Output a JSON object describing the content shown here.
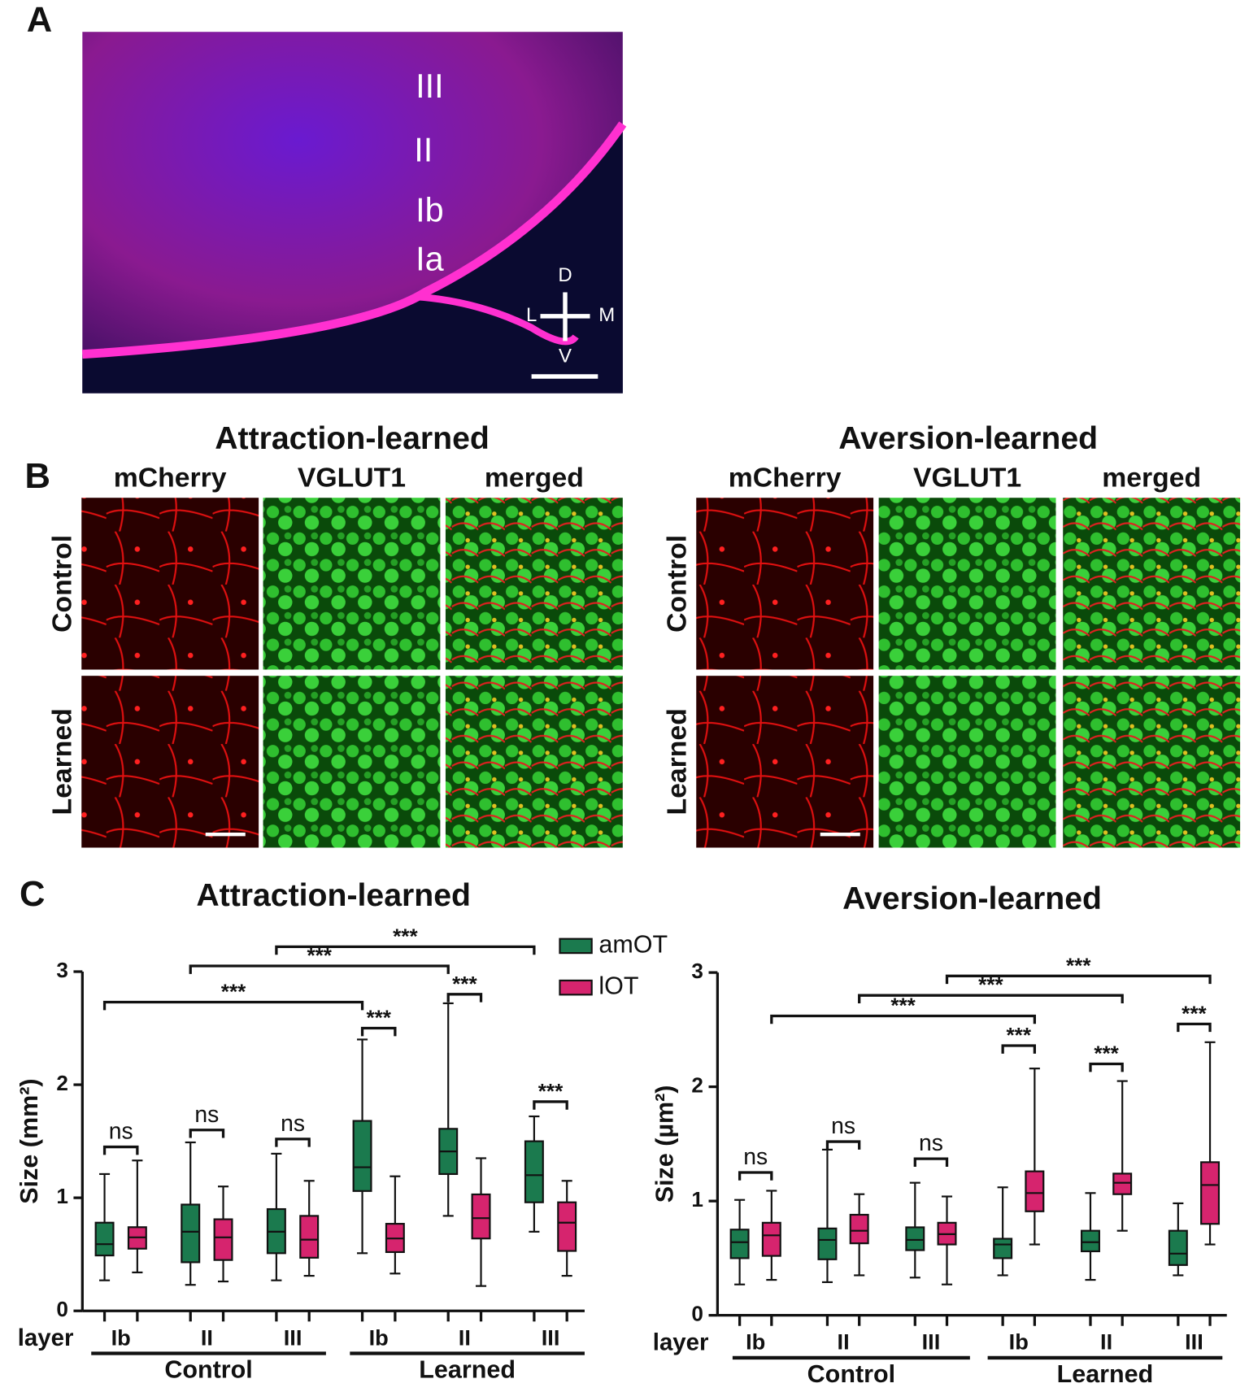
{
  "panel_a": {
    "label": "A",
    "layers": [
      "III",
      "II",
      "Ib",
      "Ia"
    ],
    "axes": [
      "D",
      "L",
      "M",
      "V"
    ]
  },
  "panel_b": {
    "label": "B",
    "groups": [
      {
        "title": "Attraction-learned",
        "columns": [
          "mCherry",
          "VGLUT1",
          "merged"
        ],
        "rows": [
          "Control",
          "Learned"
        ]
      },
      {
        "title": "Aversion-learned",
        "columns": [
          "mCherry",
          "VGLUT1",
          "merged"
        ],
        "rows": [
          "Control",
          "Learned"
        ]
      }
    ]
  },
  "panel_c": {
    "label": "C"
  },
  "chart_data": [
    {
      "type": "box",
      "title": "Attraction-learned",
      "ylabel": "Size (mm²)",
      "xlabel": "layer",
      "categories": [
        "Ib",
        "II",
        "III",
        "Ib",
        "II",
        "III"
      ],
      "groups": [
        "Control",
        "Learned"
      ],
      "ylim": [
        0,
        3
      ],
      "yticks": [
        0,
        1,
        2,
        3
      ],
      "legend": "top-right",
      "series": [
        {
          "name": "amOT",
          "color": "#1b7a4e",
          "min": [
            0.27,
            0.23,
            0.27,
            0.51,
            0.84,
            0.7
          ],
          "q1": [
            0.49,
            0.43,
            0.51,
            1.06,
            1.21,
            0.96
          ],
          "median": [
            0.59,
            0.7,
            0.7,
            1.27,
            1.41,
            1.2
          ],
          "q3": [
            0.78,
            0.94,
            0.9,
            1.68,
            1.61,
            1.5
          ],
          "max": [
            1.21,
            1.49,
            1.39,
            2.4,
            2.72,
            1.72
          ]
        },
        {
          "name": "lOT",
          "color": "#d6246e",
          "min": [
            0.34,
            0.26,
            0.31,
            0.33,
            0.22,
            0.31
          ],
          "q1": [
            0.55,
            0.45,
            0.47,
            0.52,
            0.64,
            0.53
          ],
          "median": [
            0.65,
            0.65,
            0.63,
            0.64,
            0.82,
            0.78
          ],
          "q3": [
            0.74,
            0.81,
            0.84,
            0.77,
            1.03,
            0.96
          ],
          "max": [
            1.33,
            1.1,
            1.15,
            1.19,
            1.35,
            1.15
          ]
        }
      ],
      "annotations": [
        "ns",
        "ns",
        "ns",
        "***",
        "***",
        "***",
        "***",
        "***",
        "***"
      ]
    },
    {
      "type": "box",
      "title": "Aversion-learned",
      "ylabel": "Size (µm²)",
      "xlabel": "layer",
      "categories": [
        "Ib",
        "II",
        "III",
        "Ib",
        "II",
        "III"
      ],
      "groups": [
        "Control",
        "Learned"
      ],
      "ylim": [
        0,
        3
      ],
      "yticks": [
        0,
        1,
        2,
        3
      ],
      "series": [
        {
          "name": "amOT",
          "color": "#1b7a4e",
          "min": [
            0.27,
            0.29,
            0.33,
            0.35,
            0.31,
            0.35
          ],
          "q1": [
            0.5,
            0.49,
            0.57,
            0.5,
            0.56,
            0.44
          ],
          "median": [
            0.64,
            0.66,
            0.66,
            0.62,
            0.64,
            0.54
          ],
          "q3": [
            0.75,
            0.76,
            0.77,
            0.67,
            0.74,
            0.74
          ],
          "max": [
            1.01,
            1.45,
            1.16,
            1.12,
            1.07,
            0.98
          ]
        },
        {
          "name": "lOT",
          "color": "#d6246e",
          "min": [
            0.31,
            0.35,
            0.27,
            0.62,
            0.74,
            0.62
          ],
          "q1": [
            0.52,
            0.63,
            0.62,
            0.91,
            1.06,
            0.8
          ],
          "median": [
            0.7,
            0.74,
            0.71,
            1.07,
            1.16,
            1.14
          ],
          "q3": [
            0.81,
            0.88,
            0.81,
            1.26,
            1.24,
            1.34
          ],
          "max": [
            1.09,
            1.06,
            1.04,
            2.16,
            2.05,
            2.39
          ]
        }
      ],
      "annotations": [
        "ns",
        "ns",
        "ns",
        "***",
        "***",
        "***",
        "***",
        "***",
        "***"
      ]
    }
  ]
}
